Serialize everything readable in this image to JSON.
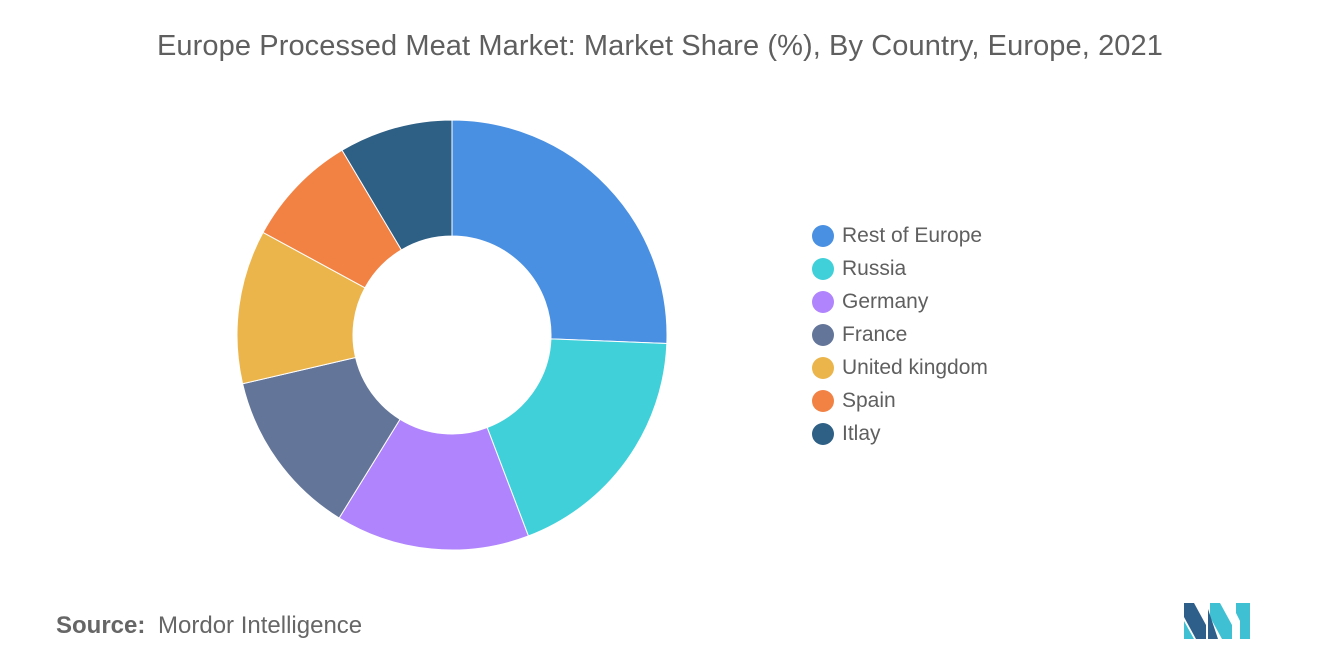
{
  "title": "Europe Processed Meat Market: Market Share (%), By Country, Europe, 2021",
  "source": {
    "label": "Source:",
    "text": "Mordor Intelligence"
  },
  "logo": {
    "icon": "mordor-intelligence-logo-icon",
    "colors": [
      "#2e5f8a",
      "#3fc1d3"
    ]
  },
  "chart_data": {
    "type": "pie",
    "style": "donut",
    "title": "Europe Processed Meat Market: Market Share (%), By Country, Europe, 2021",
    "legend_position": "right",
    "categories": [
      "Rest of Europe",
      "Russia",
      "Germany",
      "France",
      "United kingdom",
      "Spain",
      "Itlay"
    ],
    "values": [
      25.5,
      18.5,
      14.5,
      12.5,
      11.5,
      8.5,
      8.5
    ],
    "colors": [
      "#4a90e2",
      "#40d0da",
      "#b084fc",
      "#637599",
      "#ecb54b",
      "#f28244",
      "#2e5f85"
    ]
  }
}
